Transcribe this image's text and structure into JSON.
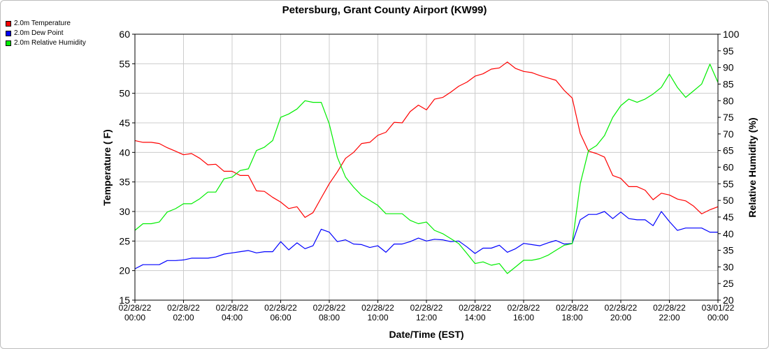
{
  "chart_data": {
    "type": "line",
    "title": "Petersburg, Grant County Airport (KW99)",
    "xlabel": "Date/Time (EST)",
    "ylabel": "Temperature ( F)",
    "y2label": "Relative Humidity (%)",
    "ylim": [
      15,
      60
    ],
    "y2lim": [
      20,
      100
    ],
    "grid": true,
    "legend_position": "top-left",
    "x_ticks": [
      {
        "date": "02/28/22",
        "time": "00:00"
      },
      {
        "date": "02/28/22",
        "time": "02:00"
      },
      {
        "date": "02/28/22",
        "time": "04:00"
      },
      {
        "date": "02/28/22",
        "time": "06:00"
      },
      {
        "date": "02/28/22",
        "time": "08:00"
      },
      {
        "date": "02/28/22",
        "time": "10:00"
      },
      {
        "date": "02/28/22",
        "time": "12:00"
      },
      {
        "date": "02/28/22",
        "time": "14:00"
      },
      {
        "date": "02/28/22",
        "time": "16:00"
      },
      {
        "date": "02/28/22",
        "time": "18:00"
      },
      {
        "date": "02/28/22",
        "time": "20:00"
      },
      {
        "date": "02/28/22",
        "time": "22:00"
      },
      {
        "date": "03/01/22",
        "time": "00:00"
      }
    ],
    "y_ticks": [
      15,
      20,
      25,
      30,
      35,
      40,
      45,
      50,
      55,
      60
    ],
    "y2_ticks": [
      20,
      25,
      30,
      35,
      40,
      45,
      50,
      55,
      60,
      65,
      70,
      75,
      80,
      85,
      90,
      95,
      100
    ],
    "series": [
      {
        "name": "2.0m Temperature",
        "color": "#ff0000",
        "axis": "left",
        "x_hours": [
          0,
          0.33,
          0.67,
          1,
          1.33,
          1.67,
          2,
          2.33,
          2.67,
          3,
          3.33,
          3.67,
          4,
          4.33,
          4.67,
          5,
          5.33,
          5.67,
          6,
          6.33,
          6.67,
          7,
          7.33,
          7.67,
          8,
          8.33,
          8.67,
          9,
          9.33,
          9.67,
          10,
          10.33,
          10.67,
          11,
          11.33,
          11.67,
          12,
          12.33,
          12.67,
          13,
          13.33,
          13.67,
          14,
          14.33,
          14.67,
          15,
          15.33,
          15.67,
          16,
          16.33,
          16.67,
          17,
          17.33,
          17.67,
          18,
          18.33,
          18.67,
          19,
          19.33,
          19.67,
          20,
          20.33,
          20.67,
          21,
          21.33,
          21.67,
          22,
          22.33,
          22.67,
          23,
          23.33,
          23.67,
          24
        ],
        "values": [
          42,
          41.7,
          41.7,
          41.5,
          40.8,
          40.2,
          39.6,
          39.8,
          39,
          37.9,
          38,
          36.8,
          36.8,
          36.1,
          36.1,
          33.5,
          33.4,
          32.4,
          31.6,
          30.5,
          30.8,
          29,
          29.8,
          32.3,
          34.7,
          36.7,
          39,
          40,
          41.5,
          41.7,
          42.9,
          43.4,
          45.1,
          45,
          46.9,
          48,
          47.2,
          49,
          49.3,
          50.2,
          51.2,
          51.9,
          52.9,
          53.3,
          54.1,
          54.3,
          55.3,
          54.2,
          53.7,
          53.5,
          53,
          52.6,
          52.2,
          50.5,
          49.2,
          43.2,
          40.2,
          39.8,
          39.2,
          36.1,
          35.6,
          34.2,
          34.2,
          33.6,
          32,
          33.1,
          32.8,
          32.1,
          31.8,
          30.9,
          29.6,
          30.3,
          30.8
        ]
      },
      {
        "name": "2.0m Dew Point",
        "color": "#0000ff",
        "axis": "left",
        "x_hours": [
          0,
          0.33,
          0.67,
          1,
          1.33,
          1.67,
          2,
          2.33,
          2.67,
          3,
          3.33,
          3.67,
          4,
          4.33,
          4.67,
          5,
          5.33,
          5.67,
          6,
          6.33,
          6.67,
          7,
          7.33,
          7.67,
          8,
          8.33,
          8.67,
          9,
          9.33,
          9.67,
          10,
          10.33,
          10.67,
          11,
          11.33,
          11.67,
          12,
          12.33,
          12.67,
          13,
          13.33,
          13.67,
          14,
          14.33,
          14.67,
          15,
          15.33,
          15.67,
          16,
          16.33,
          16.67,
          17,
          17.33,
          17.67,
          18,
          18.33,
          18.67,
          19,
          19.33,
          19.67,
          20,
          20.33,
          20.67,
          21,
          21.33,
          21.67,
          22,
          22.33,
          22.67,
          23,
          23.33,
          23.67,
          24
        ],
        "values": [
          20.3,
          21,
          21,
          21,
          21.7,
          21.7,
          21.8,
          22.1,
          22.1,
          22.1,
          22.3,
          22.8,
          23,
          23.2,
          23.4,
          23,
          23.2,
          23.2,
          24.9,
          23.5,
          24.7,
          23.7,
          24.2,
          27,
          26.5,
          24.9,
          25.2,
          24.5,
          24.4,
          23.9,
          24.2,
          23.1,
          24.5,
          24.5,
          24.9,
          25.5,
          25,
          25.3,
          25.2,
          24.9,
          25,
          24,
          22.9,
          23.8,
          23.8,
          24.3,
          23.1,
          23.7,
          24.6,
          24.4,
          24.2,
          24.7,
          25.1,
          24.5,
          24.6,
          28.6,
          29.5,
          29.5,
          30,
          28.8,
          29.9,
          28.8,
          28.6,
          28.6,
          27.6,
          30,
          28.3,
          26.8,
          27.2,
          27.2,
          27.2,
          26.5,
          26.5
        ]
      },
      {
        "name": "2.0m Relative Humidity",
        "color": "#00ee00",
        "axis": "right",
        "x_hours": [
          0,
          0.33,
          0.67,
          1,
          1.33,
          1.67,
          2,
          2.33,
          2.67,
          3,
          3.33,
          3.67,
          4,
          4.33,
          4.67,
          5,
          5.33,
          5.67,
          6,
          6.33,
          6.67,
          7,
          7.33,
          7.67,
          8,
          8.33,
          8.67,
          9,
          9.33,
          9.67,
          10,
          10.33,
          10.67,
          11,
          11.33,
          11.67,
          12,
          12.33,
          12.67,
          13,
          13.33,
          13.67,
          14,
          14.33,
          14.67,
          15,
          15.33,
          15.67,
          16,
          16.33,
          16.67,
          17,
          17.33,
          17.67,
          18,
          18.33,
          18.67,
          19,
          19.33,
          19.67,
          20,
          20.33,
          20.67,
          21,
          21.33,
          21.67,
          22,
          22.33,
          22.67,
          23,
          23.33,
          23.67,
          24
        ],
        "values": [
          41,
          43,
          43,
          43.5,
          46.5,
          47.5,
          49,
          49,
          50.5,
          52.5,
          52.5,
          56.5,
          57,
          59,
          59.5,
          65,
          66,
          68,
          75,
          76,
          77.5,
          80,
          79.5,
          79.5,
          73,
          63,
          57,
          54,
          51.5,
          50,
          48.5,
          46,
          46,
          46,
          44,
          43,
          43.5,
          41,
          40,
          38.5,
          37,
          34,
          31,
          31.5,
          30.5,
          31,
          28,
          30,
          32,
          32,
          32.5,
          33.5,
          35,
          36.5,
          37,
          55,
          65,
          66.5,
          69.5,
          75,
          78.5,
          80.5,
          79.5,
          80.5,
          82,
          84,
          88,
          84,
          81,
          83,
          85,
          91,
          85.5
        ]
      }
    ]
  }
}
